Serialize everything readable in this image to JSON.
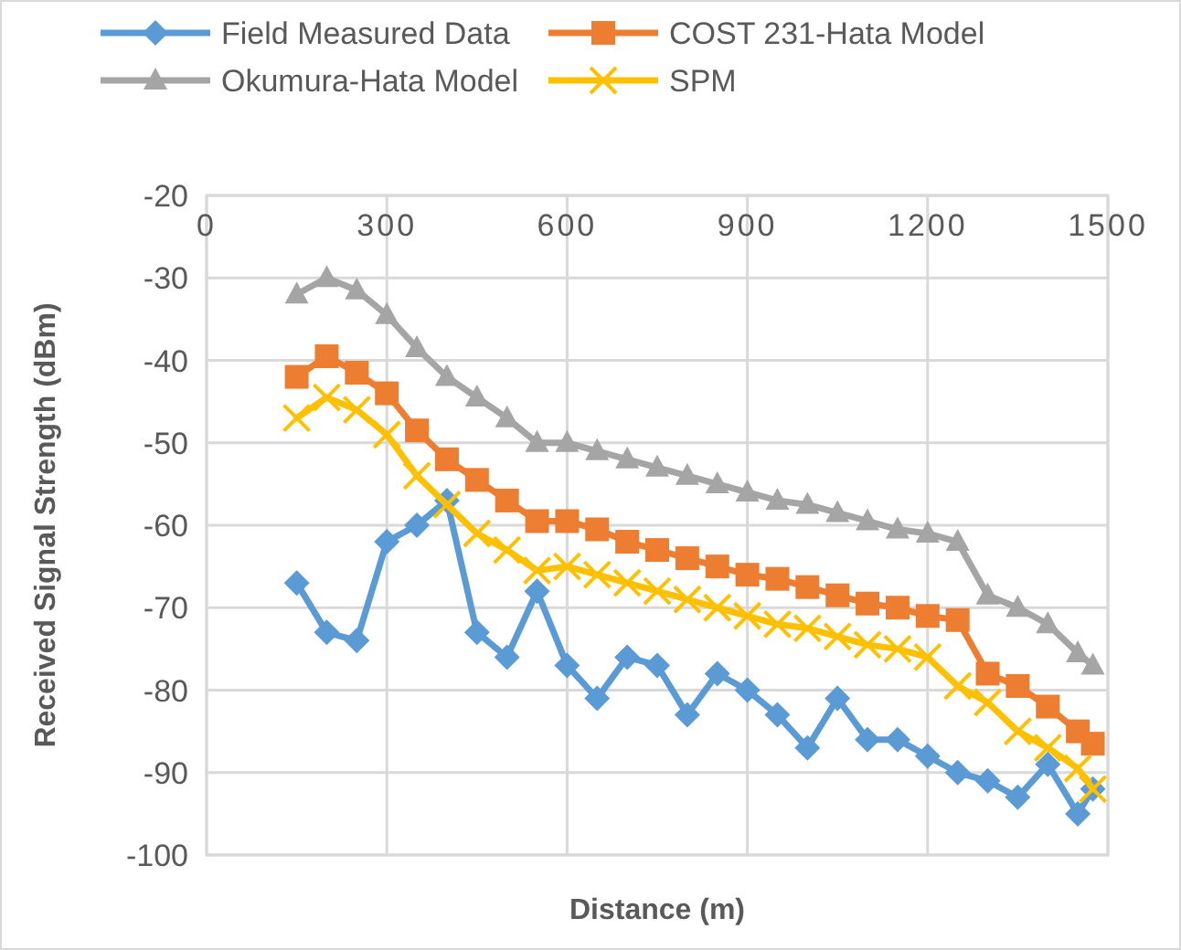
{
  "chart_data": {
    "type": "line",
    "xlabel": "Distance (m)",
    "ylabel": "Received Signal Strength (dBm)",
    "x": [
      150,
      200,
      250,
      300,
      350,
      400,
      450,
      500,
      550,
      600,
      650,
      700,
      750,
      800,
      850,
      900,
      950,
      1000,
      1050,
      1100,
      1150,
      1200,
      1250,
      1300,
      1350,
      1400,
      1450,
      1475
    ],
    "xlim": [
      0,
      1500
    ],
    "xticks": [
      0,
      300,
      600,
      900,
      1200,
      1500
    ],
    "ylim": [
      -100,
      -20
    ],
    "yticks": [
      -100,
      -90,
      -80,
      -70,
      -60,
      -50,
      -40,
      -30,
      -20
    ],
    "grid": true,
    "legend": "top",
    "line_style": "solid",
    "series": [
      {
        "name": "Field Measured Data",
        "color": "#5b9bd5",
        "marker": "diamond",
        "values": [
          -67,
          -73,
          -74,
          -62,
          -60,
          -57,
          -73,
          -76,
          -68,
          -77,
          -81,
          -76,
          -77,
          -83,
          -78,
          -80,
          -83,
          -87,
          -81,
          -86,
          -86,
          -88,
          -90,
          -91,
          -93,
          -89,
          -95,
          -92
        ]
      },
      {
        "name": "COST 231-Hata Model",
        "color": "#ed7d31",
        "marker": "square",
        "values": [
          -42,
          -39.5,
          -41.5,
          -44,
          -48.5,
          -52,
          -54.5,
          -57,
          -59.5,
          -59.5,
          -60.5,
          -62,
          -63,
          -64,
          -65,
          -66,
          -66.5,
          -67.5,
          -68.5,
          -69.5,
          -70,
          -71,
          -71.5,
          -78,
          -79.5,
          -82,
          -85,
          -86.5
        ]
      },
      {
        "name": "Okumura-Hata Model",
        "color": "#a5a5a5",
        "marker": "triangle",
        "values": [
          -32,
          -30,
          -31.5,
          -34.5,
          -38.5,
          -42,
          -44.5,
          -47,
          -50,
          -50,
          -51,
          -52,
          -53,
          -54,
          -55,
          -56,
          -57,
          -57.5,
          -58.5,
          -59.5,
          -60.5,
          -61,
          -62,
          -68.5,
          -70,
          -72,
          -75.5,
          -77
        ]
      },
      {
        "name": "SPM",
        "color": "#ffc000",
        "marker": "cross",
        "values": [
          -47,
          -44.5,
          -46,
          -49,
          -54,
          -57.5,
          -61,
          -63,
          -65.5,
          -65,
          -66,
          -67,
          -68,
          -69,
          -70,
          -71,
          -72,
          -72.5,
          -73.5,
          -74.5,
          -75,
          -76,
          -79.5,
          -81.5,
          -85,
          -87,
          -89.5,
          -92
        ]
      }
    ]
  }
}
